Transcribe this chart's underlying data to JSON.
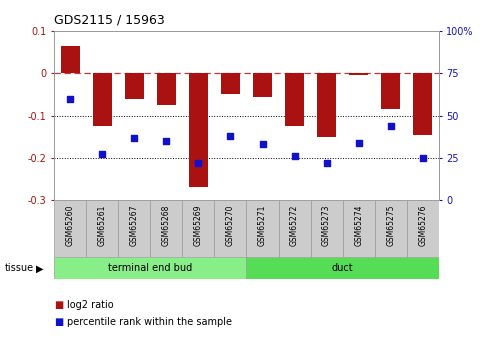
{
  "title": "GDS2115 / 15963",
  "samples": [
    "GSM65260",
    "GSM65261",
    "GSM65267",
    "GSM65268",
    "GSM65269",
    "GSM65270",
    "GSM65271",
    "GSM65272",
    "GSM65273",
    "GSM65274",
    "GSM65275",
    "GSM65276"
  ],
  "log2_ratio": [
    0.065,
    -0.125,
    -0.06,
    -0.075,
    -0.27,
    -0.05,
    -0.055,
    -0.125,
    -0.15,
    -0.005,
    -0.085,
    -0.145
  ],
  "percentile_rank": [
    60,
    27,
    37,
    35,
    22,
    38,
    33,
    26,
    22,
    34,
    44,
    25
  ],
  "bar_color": "#aa1111",
  "dot_color": "#1111cc",
  "ylim_left": [
    -0.3,
    0.1
  ],
  "ylim_right": [
    0,
    100
  ],
  "hline_color": "#cc3333",
  "groups": [
    {
      "label": "terminal end bud",
      "start": 0,
      "end": 6,
      "color": "#88ee88"
    },
    {
      "label": "duct",
      "start": 6,
      "end": 12,
      "color": "#55dd55"
    }
  ],
  "tissue_label": "tissue",
  "legend_items": [
    {
      "label": "log2 ratio",
      "color": "#aa1111"
    },
    {
      "label": "percentile rank within the sample",
      "color": "#1111cc"
    }
  ],
  "yticks_left": [
    -0.3,
    -0.2,
    -0.1,
    0.0,
    0.1
  ],
  "yticks_right": [
    0,
    25,
    50,
    75,
    100
  ],
  "grid_hlines": [
    -0.1,
    -0.2
  ],
  "background_color": "#ffffff",
  "box_color": "#cccccc",
  "spine_color": "#999999"
}
